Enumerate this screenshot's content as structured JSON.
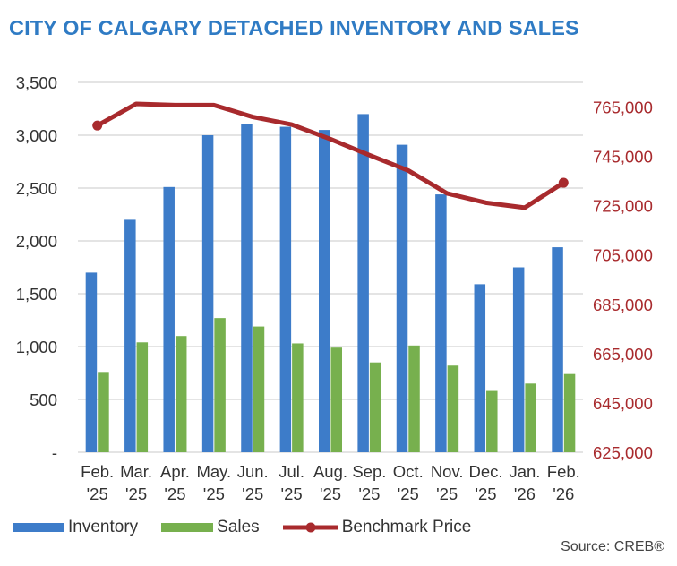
{
  "title": "CITY OF CALGARY DETACHED INVENTORY AND SALES",
  "source": "Source: CREB®",
  "colors": {
    "inventory": "#3d7cc9",
    "sales": "#77b04e",
    "benchmark": "#a82a2d",
    "right_axis_text": "#a82a2d",
    "title": "#2f7bc4"
  },
  "chart_data": {
    "type": "bar",
    "title": "CITY OF CALGARY DETACHED INVENTORY AND SALES",
    "categories": [
      [
        "Feb.",
        "'25"
      ],
      [
        "Mar.",
        "'25"
      ],
      [
        "Apr.",
        "'25"
      ],
      [
        "May.",
        "'25"
      ],
      [
        "Jun.",
        "'25"
      ],
      [
        "Jul.",
        "'25"
      ],
      [
        "Aug.",
        "'25"
      ],
      [
        "Sep.",
        "'25"
      ],
      [
        "Oct.",
        "'25"
      ],
      [
        "Nov.",
        "'25"
      ],
      [
        "Dec.",
        "'25"
      ],
      [
        "Jan.",
        "'26"
      ],
      [
        "Feb.",
        "'26"
      ]
    ],
    "series": [
      {
        "name": "Inventory",
        "type": "bar",
        "axis": "left",
        "values": [
          1700,
          2200,
          2510,
          3000,
          3110,
          3080,
          3050,
          3200,
          2910,
          2440,
          1590,
          1750,
          1940
        ]
      },
      {
        "name": "Sales",
        "type": "bar",
        "axis": "left",
        "values": [
          760,
          1040,
          1100,
          1270,
          1190,
          1030,
          990,
          850,
          1010,
          820,
          580,
          650,
          740
        ]
      },
      {
        "name": "Benchmark Price",
        "type": "line",
        "axis": "right",
        "values": [
          757500,
          766300,
          765800,
          765800,
          761000,
          757900,
          752000,
          745500,
          739300,
          730000,
          726200,
          724200,
          734300
        ]
      }
    ],
    "y_left": {
      "range": [
        0,
        3500
      ],
      "ticks": [
        0,
        500,
        1000,
        1500,
        2000,
        2500,
        3000,
        3500
      ],
      "tick_labels": [
        "-",
        "500",
        "1,000",
        "1,500",
        "2,000",
        "2,500",
        "3,000",
        "3,500"
      ]
    },
    "y_right": {
      "range": [
        625000,
        775000
      ],
      "ticks": [
        625000,
        645000,
        665000,
        685000,
        705000,
        725000,
        745000,
        765000
      ],
      "tick_labels": [
        "625,000",
        "645,000",
        "665,000",
        "685,000",
        "705,000",
        "725,000",
        "745,000",
        "765,000"
      ]
    },
    "grid": true,
    "legend_position": "bottom-left"
  }
}
